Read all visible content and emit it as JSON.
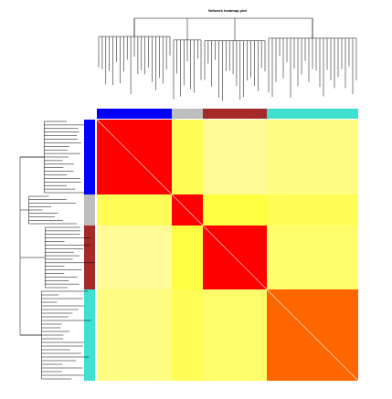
{
  "chart_data": {
    "type": "heatmap",
    "title": "Network heatmap plot",
    "module_colors": [
      "#0000ff",
      "#bebebe",
      "#a52a2a",
      "#40e0d0"
    ],
    "module_sizes": [
      82,
      34,
      70,
      100
    ],
    "matrix": [
      [
        1,
        0.3,
        0.15,
        0.2
      ],
      [
        0.3,
        1,
        0.35,
        0.3
      ],
      [
        0.15,
        0.35,
        1,
        0.25
      ],
      [
        0.2,
        0.3,
        0.25,
        0.8
      ]
    ],
    "colormap": [
      "#fffbd8",
      "#ffff00",
      "#ff0000"
    ]
  }
}
